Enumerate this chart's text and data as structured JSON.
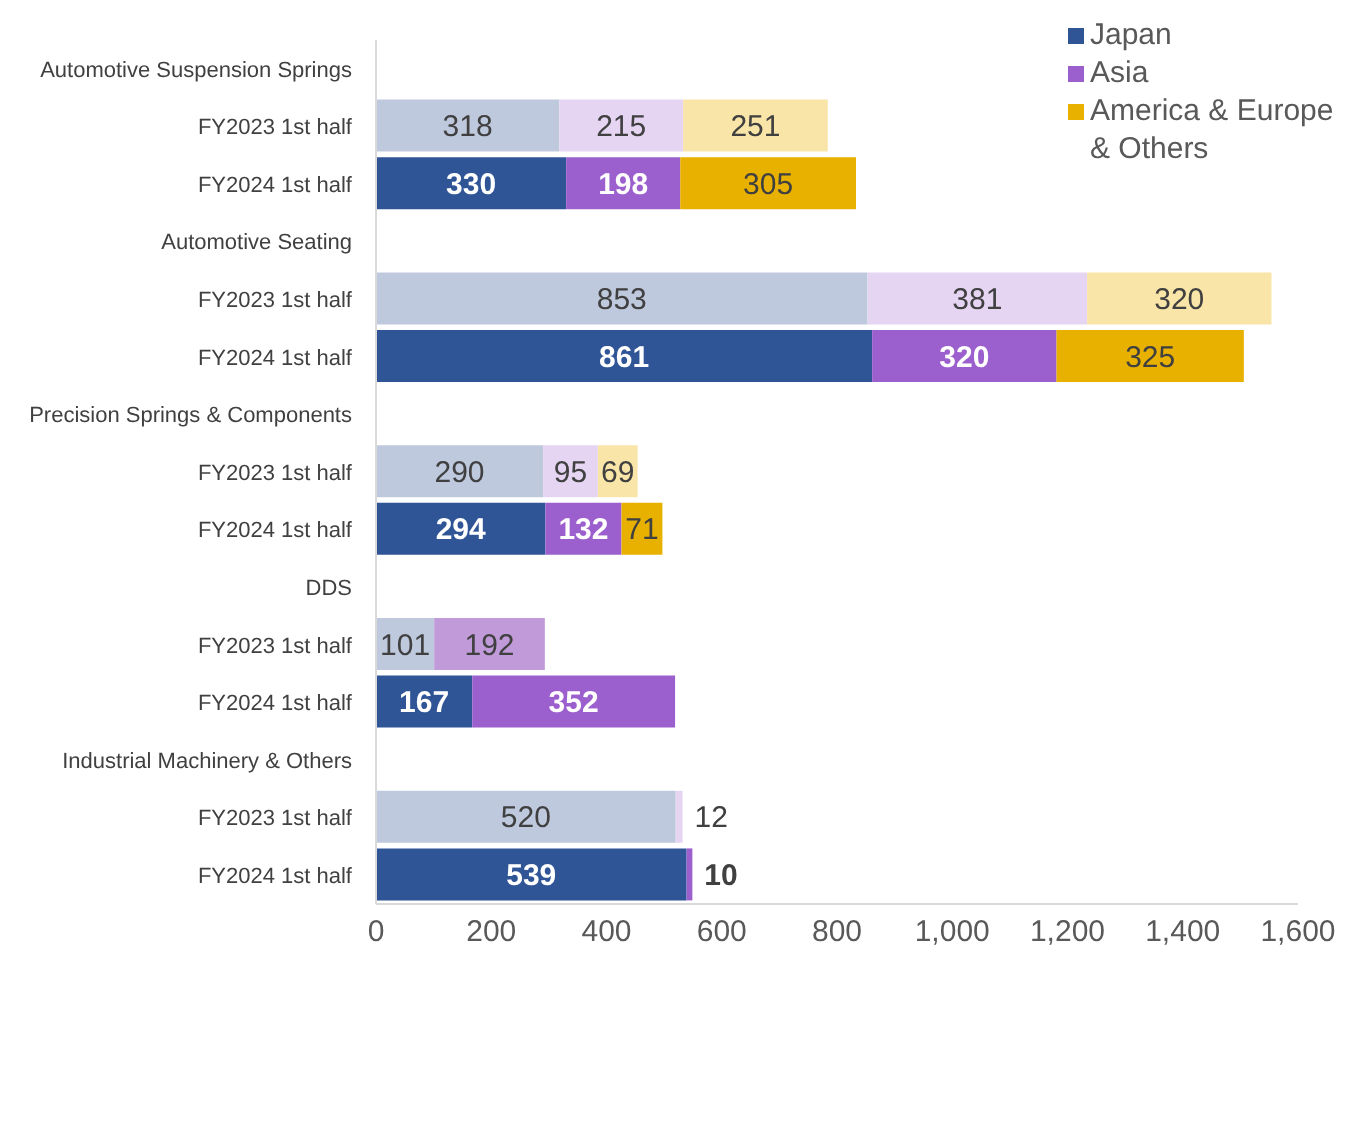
{
  "chart_data": {
    "type": "bar",
    "orientation": "horizontal",
    "stacked": true,
    "categories": [
      "Automotive Suspension Springs",
      "FY2023 1st half",
      "FY2024 1st half",
      "Automotive Seating",
      "FY2023 1st half",
      "FY2024 1st half",
      "Precision Springs & Components",
      "FY2023 1st half",
      "FY2024 1st half",
      "DDS",
      "FY2023 1st half",
      "FY2024 1st half",
      "Industrial Machinery & Others",
      "FY2023 1st half",
      "FY2024 1st half"
    ],
    "series": [
      {
        "name": "Japan",
        "color": "#2f5597",
        "values": [
          null,
          318,
          330,
          null,
          853,
          861,
          null,
          290,
          294,
          null,
          101,
          167,
          null,
          520,
          539
        ],
        "colors": [
          "#bfc9de",
          "#bfc9de",
          "#2f5597",
          "#bfc9de",
          "#bfc9de",
          "#2f5597",
          "#bfc9de",
          "#bfc9de",
          "#2f5597",
          "#bfc9de",
          "#bfc9de",
          "#2f5597",
          "#bfc9de",
          "#bfc9de",
          "#2f5597"
        ]
      },
      {
        "name": "Asia",
        "color": "#9c5fce",
        "values": [
          null,
          215,
          198,
          null,
          381,
          320,
          null,
          95,
          132,
          null,
          192,
          352,
          null,
          12,
          10
        ],
        "colors": [
          "#e6d5f2",
          "#e6d5f2",
          "#9c5fce",
          "#e6d5f2",
          "#e6d5f2",
          "#9c5fce",
          "#e6d5f2",
          "#e6d5f2",
          "#9c5fce",
          "#c09ad9",
          "#c09ad9",
          "#9c5fce",
          "#e6d5f2",
          "#e6d5f2",
          "#9c5fce"
        ]
      },
      {
        "name": "America & Europe & Others",
        "color": "#e8b100",
        "values": [
          null,
          251,
          305,
          null,
          320,
          325,
          null,
          69,
          71,
          null,
          null,
          null,
          null,
          null,
          null
        ],
        "colors": [
          "#f9e5a8",
          "#f9e5a8",
          "#e8b100",
          "#f9e5a8",
          "#f9e5a8",
          "#e8b100",
          "#f9e5a8",
          "#f9e5a8",
          "#e8b100",
          "#f9e5a8",
          "#f9e5a8",
          "#e8b100",
          "#f9e5a8",
          "#f9e5a8",
          "#e8b100"
        ]
      }
    ],
    "xlim": [
      0,
      1600
    ],
    "xticks": [
      0,
      200,
      400,
      600,
      800,
      {
        "value": 1000,
        "label": "1,000"
      },
      {
        "value": 1200,
        "label": "1,200"
      },
      {
        "value": 1400,
        "label": "1,400"
      },
      {
        "value": 1600,
        "label": "1,600"
      }
    ],
    "data_labels": true,
    "legend": "top right"
  }
}
